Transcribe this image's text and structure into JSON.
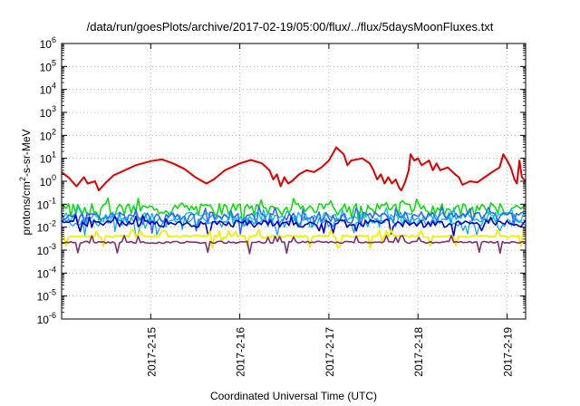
{
  "chart_data": {
    "type": "line",
    "title": "/data/run/goesPlots/archive/2017-02-19/05:00/flux/../flux/5daysMoonFluxes.txt",
    "xlabel": "Coordinated Universal Time (UTC)",
    "ylabel": {
      "pre": "protons/cm",
      "sup": "2",
      "post": "-s-sr-MeV"
    },
    "yscale": "log",
    "ylim": [
      1e-06,
      1000000.0
    ],
    "y_ticks": [
      {
        "value": 1e-06,
        "base": "10",
        "exp": "-6"
      },
      {
        "value": 1e-05,
        "base": "10",
        "exp": "-5"
      },
      {
        "value": 0.0001,
        "base": "10",
        "exp": "-4"
      },
      {
        "value": 0.001,
        "base": "10",
        "exp": "-3"
      },
      {
        "value": 0.01,
        "base": "10",
        "exp": "-2"
      },
      {
        "value": 0.1,
        "base": "10",
        "exp": "-1"
      },
      {
        "value": 1,
        "base": "10",
        "exp": "0"
      },
      {
        "value": 10,
        "base": "10",
        "exp": "1"
      },
      {
        "value": 100,
        "base": "10",
        "exp": "2"
      },
      {
        "value": 1000,
        "base": "10",
        "exp": "3"
      },
      {
        "value": 10000,
        "base": "10",
        "exp": "4"
      },
      {
        "value": 100000,
        "base": "10",
        "exp": "5"
      },
      {
        "value": 1000000,
        "base": "10",
        "exp": "6"
      }
    ],
    "xlim": [
      "2017-02-14 00:00",
      "2017-02-19 05:00"
    ],
    "x_ticks": [
      {
        "value": "2017-02-15 00:00",
        "label": "2017-2-15"
      },
      {
        "value": "2017-02-16 00:00",
        "label": "2017-2-16"
      },
      {
        "value": "2017-02-17 00:00",
        "label": "2017-2-17"
      },
      {
        "value": "2017-02-18 00:00",
        "label": "2017-2-18"
      },
      {
        "value": "2017-02-19 00:00",
        "label": "2017-2-19"
      }
    ],
    "grid": true,
    "series": [
      {
        "color": "#e00000",
        "width": 2,
        "points": [
          [
            "2017-02-14 00:00",
            2.5
          ],
          [
            "2017-02-14 02:00",
            1.4
          ],
          [
            "2017-02-14 04:00",
            0.6
          ],
          [
            "2017-02-14 06:00",
            1.5
          ],
          [
            "2017-02-14 07:00",
            0.8
          ],
          [
            "2017-02-14 09:00",
            1.0
          ],
          [
            "2017-02-14 10:00",
            0.4
          ],
          [
            "2017-02-14 12:00",
            0.9
          ],
          [
            "2017-02-14 14:00",
            1.8
          ],
          [
            "2017-02-14 17:00",
            3.0
          ],
          [
            "2017-02-14 20:00",
            5.0
          ],
          [
            "2017-02-15 00:00",
            7.5
          ],
          [
            "2017-02-15 03:00",
            9.0
          ],
          [
            "2017-02-15 06:00",
            6.0
          ],
          [
            "2017-02-15 09:00",
            3.5
          ],
          [
            "2017-02-15 12:00",
            1.5
          ],
          [
            "2017-02-15 15:00",
            0.8
          ],
          [
            "2017-02-15 17:00",
            1.2
          ],
          [
            "2017-02-15 20:00",
            3.0
          ],
          [
            "2017-02-16 00:00",
            6.0
          ],
          [
            "2017-02-16 03:00",
            8.5
          ],
          [
            "2017-02-16 06:00",
            6.0
          ],
          [
            "2017-02-16 08:00",
            3.0
          ],
          [
            "2017-02-16 09:00",
            1.2
          ],
          [
            "2017-02-16 10:00",
            2.0
          ],
          [
            "2017-02-16 11:00",
            0.6
          ],
          [
            "2017-02-16 12:00",
            1.5
          ],
          [
            "2017-02-16 13:00",
            0.8
          ],
          [
            "2017-02-16 14:00",
            1.0
          ],
          [
            "2017-02-16 16:00",
            2.0
          ],
          [
            "2017-02-16 18:00",
            3.0
          ],
          [
            "2017-02-16 20:00",
            2.5
          ],
          [
            "2017-02-16 22:00",
            4.0
          ],
          [
            "2017-02-17 00:00",
            8.0
          ],
          [
            "2017-02-17 02:00",
            30.0
          ],
          [
            "2017-02-17 04:00",
            15.0
          ],
          [
            "2017-02-17 05:00",
            5.0
          ],
          [
            "2017-02-17 06:00",
            8.0
          ],
          [
            "2017-02-17 09:00",
            10.0
          ],
          [
            "2017-02-17 11:00",
            6.0
          ],
          [
            "2017-02-17 12:00",
            3.0
          ],
          [
            "2017-02-17 13:00",
            1.2
          ],
          [
            "2017-02-17 14:00",
            2.0
          ],
          [
            "2017-02-17 15:00",
            0.8
          ],
          [
            "2017-02-17 16:00",
            1.5
          ],
          [
            "2017-02-17 17:00",
            0.8
          ],
          [
            "2017-02-17 18:00",
            1.2
          ],
          [
            "2017-02-17 19:00",
            0.5
          ],
          [
            "2017-02-17 19:30",
            0.4
          ],
          [
            "2017-02-17 20:30",
            0.9
          ],
          [
            "2017-02-17 21:30",
            3.0
          ],
          [
            "2017-02-17 22:00",
            15.0
          ],
          [
            "2017-02-17 23:00",
            8.0
          ],
          [
            "2017-02-18 00:00",
            10.0
          ],
          [
            "2017-02-18 01:00",
            5.0
          ],
          [
            "2017-02-18 03:00",
            8.0
          ],
          [
            "2017-02-18 04:00",
            3.0
          ],
          [
            "2017-02-18 05:00",
            6.0
          ],
          [
            "2017-02-18 06:00",
            3.0
          ],
          [
            "2017-02-18 08:00",
            4.0
          ],
          [
            "2017-02-18 10:00",
            2.0
          ],
          [
            "2017-02-18 11:00",
            1.5
          ],
          [
            "2017-02-18 12:00",
            0.7
          ],
          [
            "2017-02-18 14:00",
            1.0
          ],
          [
            "2017-02-18 16:00",
            0.9
          ],
          [
            "2017-02-18 18:00",
            1.5
          ],
          [
            "2017-02-18 20:00",
            2.5
          ],
          [
            "2017-02-18 22:00",
            4.0
          ],
          [
            "2017-02-18 23:00",
            15.0
          ],
          [
            "2017-02-19 00:00",
            8.0
          ],
          [
            "2017-02-19 01:00",
            4.0
          ],
          [
            "2017-02-19 02:00",
            1.2
          ],
          [
            "2017-02-19 02:40",
            0.8
          ],
          [
            "2017-02-19 03:20",
            8.0
          ],
          [
            "2017-02-19 04:00",
            1.5
          ],
          [
            "2017-02-19 05:00",
            1.0
          ]
        ]
      },
      {
        "color": "#00e000",
        "width": 1.5,
        "base": 0.07,
        "noise": 0.55,
        "seed": 3
      },
      {
        "color": "#00c0e0",
        "width": 1.3,
        "base": 0.03,
        "noise": 0.5,
        "seed": 7
      },
      {
        "color": "#3060ff",
        "width": 1.5,
        "base": 0.03,
        "noise": 0.55,
        "seed": 11
      },
      {
        "color": "#00a0ff",
        "width": 1.2,
        "base": 0.018,
        "noise": 0.45,
        "seed": 17
      },
      {
        "color": "#0000c8",
        "width": 1.6,
        "base": 0.015,
        "noise": 0.35,
        "seed": 23
      },
      {
        "color": "#f0f000",
        "width": 1.8,
        "base": 0.004,
        "noise": 0.12,
        "seed": 29
      },
      {
        "color": "#803070",
        "width": 1.6,
        "base": 0.0022,
        "noise": 0.1,
        "seed": 31
      }
    ]
  }
}
